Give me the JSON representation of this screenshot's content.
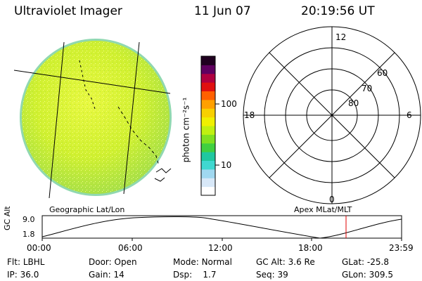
{
  "header": {
    "title": "Ultraviolet Imager",
    "date": "11 Jun 07",
    "time": "20:19:56 UT"
  },
  "colorbar": {
    "unit_label": "photon cm⁻²s⁻¹",
    "ticks": [
      "100",
      "10"
    ],
    "colors": [
      "#ffffff",
      "#d8e8f8",
      "#a0d8f0",
      "#40d8d0",
      "#20c8a0",
      "#40d040",
      "#80e020",
      "#c0f010",
      "#f0f000",
      "#f8d000",
      "#ffa000",
      "#ff6000",
      "#e01010",
      "#b00040",
      "#600060",
      "#200020"
    ]
  },
  "polar": {
    "lat_labels": [
      "80",
      "70",
      "60"
    ],
    "mlt_labels": {
      "top": "12",
      "left": "18",
      "right": "6",
      "bottom": "0"
    }
  },
  "altitude_plot": {
    "ylabel": "GC Alt",
    "yticks": [
      "9.0",
      "1.8"
    ],
    "left_caption": "Geographic Lat/Lon",
    "right_caption": "Apex MLat/MLT",
    "xticks": [
      "00:00",
      "06:00",
      "12:00",
      "18:00",
      "23:59"
    ],
    "marker_color": "#e00000"
  },
  "info": {
    "row1": [
      {
        "label": "Flt:",
        "value": "LBHL"
      },
      {
        "label": "Door:",
        "value": "Open"
      },
      {
        "label": "Mode:",
        "value": "Normal"
      },
      {
        "label": "GC Alt:",
        "value": "3.6 Re"
      },
      {
        "label": "GLat:",
        "value": "-25.8"
      }
    ],
    "row2": [
      {
        "label": "IP:",
        "value": "36.0"
      },
      {
        "label": "Gain:",
        "value": "14"
      },
      {
        "label": "Dsp:",
        "value": "1.7"
      },
      {
        "label": "Seq:",
        "value": "39"
      },
      {
        "label": "GLon:",
        "value": "309.5"
      }
    ]
  }
}
